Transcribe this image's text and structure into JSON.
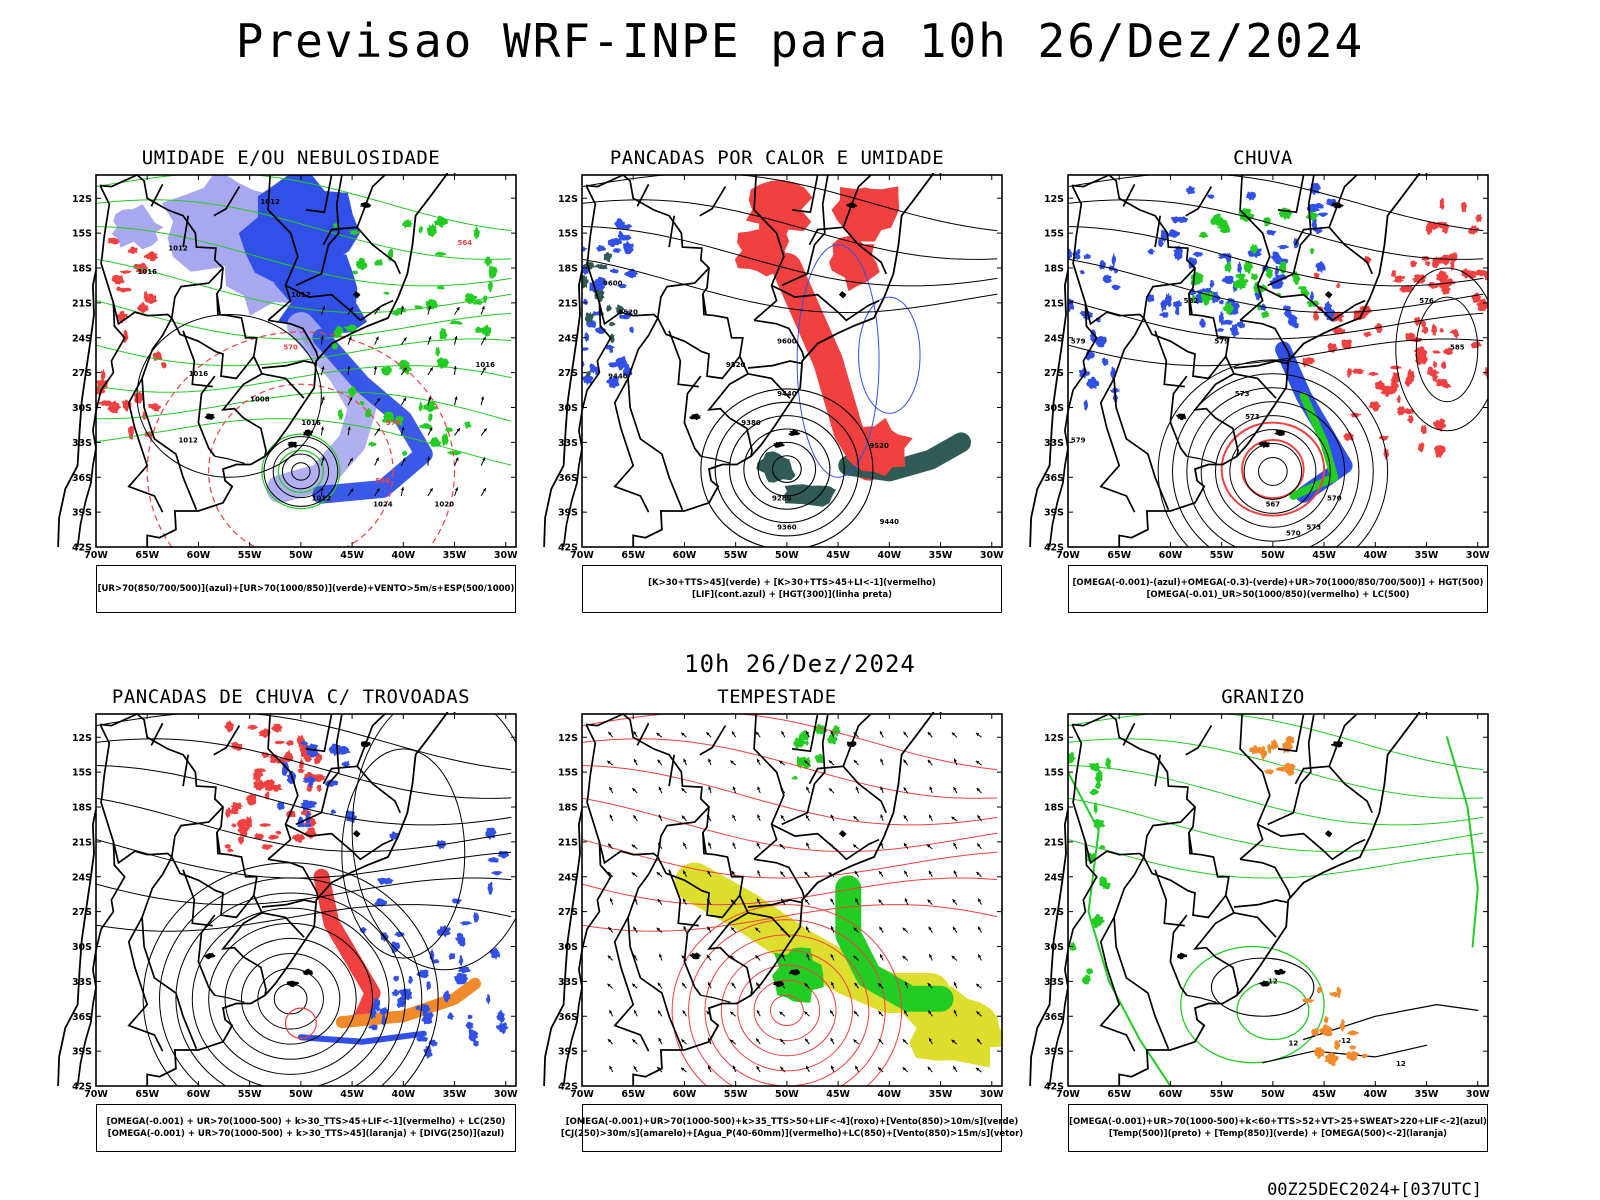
{
  "page": {
    "title": "Previsao WRF-INPE  para 10h 26/Dez/2024",
    "mid_date": "10h 26/Dez/2024",
    "run_stamp": "00Z25DEC2024+[037UTC]"
  },
  "axes": {
    "lat_ticks": [
      "12S",
      "15S",
      "18S",
      "21S",
      "24S",
      "27S",
      "30S",
      "33S",
      "36S",
      "39S",
      "42S"
    ],
    "lon_ticks": [
      "70W",
      "65W",
      "60W",
      "55W",
      "50W",
      "45W",
      "40W",
      "35W",
      "30W"
    ]
  },
  "panels": [
    {
      "title": "UMIDADE E/OU NEBULOSIDADE",
      "legend": [
        "[UR>70(850/700/500)](azul)+[UR>70(1000/850)](verde)+VENTO>5m/s+ESP(500/1000)"
      ],
      "contour_labels": [
        "1012",
        "1012",
        "1016",
        "1012",
        "1016",
        "1008",
        "1012",
        "1016",
        "1012",
        "1024",
        "1020",
        "1016",
        "564",
        "570",
        "576",
        "558"
      ]
    },
    {
      "title": "PANCADAS POR CALOR E UMIDADE",
      "legend": [
        "[K>30+TTS>45](verde) + [K>30+TTS>45+LI<-1](vermelho)",
        "[LIF](cont.azul) + [HGT(300)](linha preta)"
      ],
      "contour_labels": [
        "9600",
        "9520",
        "9440",
        "9600",
        "9520",
        "9440",
        "9380",
        "9280",
        "9360",
        "9520",
        "9440"
      ]
    },
    {
      "title": "CHUVA",
      "legend": [
        "[OMEGA(-0.001)-(azul)+OMEGA(-0.3)-(verde)+UR>70(1000/850/700/500)] + HGT(500)",
        "[OMEGA(-0.01)_UR>50(1000/850)(vermelho) + LC(500)"
      ],
      "contour_labels": [
        "582",
        "579",
        "579",
        "573",
        "570",
        "573",
        "567",
        "570",
        "573",
        "585",
        "576",
        "579"
      ]
    },
    {
      "title": "PANCADAS DE CHUVA C/ TROVOADAS",
      "legend": [
        "[OMEGA(-0.001) + UR>70(1000-500) + k>30_TTS>45+LIF<-1](vermelho) + LC(250)",
        "[OMEGA(-0.001) + UR>70(1000-500) + k>30_TTS>45](laranja) + [DIVG(250)](azul)"
      ],
      "contour_labels": []
    },
    {
      "title": "TEMPESTADE",
      "legend": [
        "[OMEGA(-0.001)+UR>70(1000-500)+k>35_TTS>50+LIF<-4](roxo)+[Vento(850)>10m/s](verde)",
        "[CJ(250)>30m/s](amarelo)+[Agua_P(40-60mm)](vermelho)+LC(850)+[Vento(850)>15m/s](vetor)"
      ],
      "contour_labels": []
    },
    {
      "title": "GRANIZO",
      "legend": [
        "[OMEGA(-0.001)+UR>70(1000-500)+k<60+TTS>52+VT>25+SWEAT>220+LIF<-2](azul)",
        "[Temp(500)](preto) + [Temp(850)](verde) + [OMEGA(500)<-2](laranja)"
      ],
      "contour_labels": [
        "12",
        "12",
        "-12",
        "12"
      ]
    }
  ],
  "colors": {
    "blue": "#3050e8",
    "light_blue": "#a8a8f0",
    "green": "#22cc22",
    "red": "#f04040",
    "dark_teal": "#2f5a55",
    "orange": "#f08a2a",
    "yellow": "#dede2e"
  }
}
